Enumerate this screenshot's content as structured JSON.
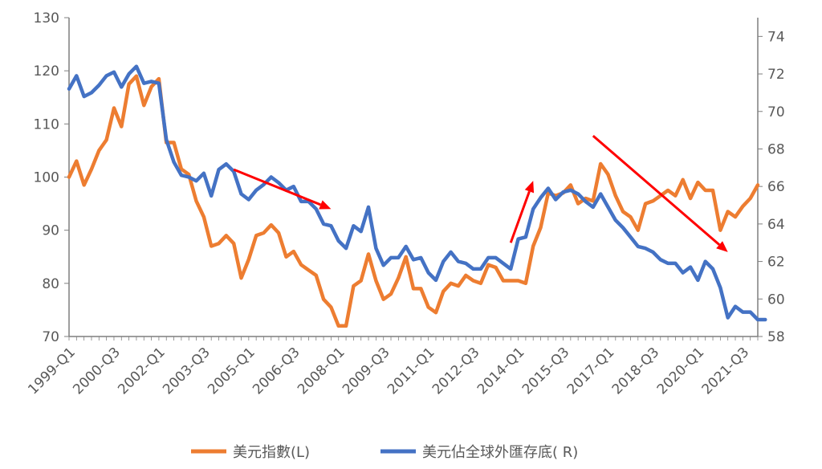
{
  "chart_data": {
    "type": "line",
    "title": "",
    "xlabel": "",
    "ylabel_left": "",
    "ylabel_right": "",
    "ylim_left": [
      70,
      130
    ],
    "ylim_right": [
      58,
      75
    ],
    "yticks_left": [
      "70",
      "80",
      "90",
      "100",
      "110",
      "120",
      "130"
    ],
    "yticks_right": [
      "58",
      "60",
      "62",
      "64",
      "66",
      "68",
      "70",
      "72",
      "74"
    ],
    "xtick_labels": [
      "1999-Q1",
      "2000-Q3",
      "2002-Q1",
      "2003-Q3",
      "2005-Q1",
      "2006-Q3",
      "2008-Q1",
      "2009-Q3",
      "2011-Q1",
      "2012-Q3",
      "2014-Q1",
      "2015-Q3",
      "2017-Q1",
      "2018-Q3",
      "2020-Q1",
      "2021-Q3"
    ],
    "x_range": [
      "1999-Q1",
      "2022-Q1"
    ],
    "grid": false,
    "legend_position": "bottom",
    "series": [
      {
        "name": "美元指數(L)",
        "axis": "left",
        "color": "#ED7D31",
        "values": [
          100,
          103,
          98.5,
          101.5,
          105,
          107,
          113,
          109.5,
          117.5,
          119,
          113.5,
          117,
          118.5,
          106.5,
          106.5,
          101.5,
          100.5,
          95.5,
          92.5,
          87,
          87.5,
          89,
          87.5,
          81,
          84.5,
          89,
          89.5,
          91,
          89.5,
          85,
          86,
          83.5,
          82.5,
          81.5,
          77,
          75.5,
          72,
          72,
          79.5,
          80.5,
          85.5,
          80.5,
          77,
          78,
          81,
          85,
          79,
          79,
          75.5,
          74.5,
          78.5,
          80,
          79.5,
          81.5,
          80.5,
          80,
          83.5,
          83,
          80.5,
          80.5,
          80.5,
          80,
          87,
          90.5,
          97,
          96.5,
          97,
          98.5,
          95,
          96,
          95.5,
          102.5,
          100.5,
          96.5,
          93.5,
          92.5,
          90,
          95,
          95.5,
          96.5,
          97.5,
          96.5,
          99.5,
          96,
          99,
          97.5,
          97.5,
          90,
          93.5,
          92.5,
          94.5,
          96,
          98.5
        ]
      },
      {
        "name": "美元佔全球外匯存底( R)",
        "axis": "right",
        "color": "#4472C4",
        "values": [
          71.2,
          71.9,
          70.8,
          71.0,
          71.4,
          71.9,
          72.1,
          71.3,
          72.0,
          72.4,
          71.5,
          71.6,
          71.5,
          68.5,
          67.3,
          66.6,
          66.5,
          66.3,
          66.7,
          65.5,
          66.9,
          67.2,
          66.8,
          65.6,
          65.3,
          65.8,
          66.1,
          66.5,
          66.2,
          65.8,
          66.0,
          65.2,
          65.2,
          64.8,
          64.0,
          63.9,
          63.1,
          62.7,
          63.9,
          63.6,
          64.9,
          62.7,
          61.8,
          62.2,
          62.2,
          62.8,
          62.1,
          62.2,
          61.4,
          61.0,
          62.0,
          62.5,
          62.0,
          61.9,
          61.6,
          61.6,
          62.2,
          62.2,
          61.9,
          61.6,
          63.2,
          63.3,
          64.8,
          65.4,
          65.9,
          65.3,
          65.7,
          65.8,
          65.6,
          65.2,
          64.9,
          65.6,
          64.9,
          64.2,
          63.8,
          63.3,
          62.8,
          62.7,
          62.5,
          62.1,
          61.9,
          61.9,
          61.4,
          61.7,
          61.0,
          62.0,
          61.6,
          60.6,
          59.0,
          59.6,
          59.3,
          59.3,
          58.9,
          58.9
        ]
      }
    ],
    "annotations": [
      {
        "type": "arrow",
        "color": "#FF0000",
        "direction": "down-right",
        "x_from": "2004-Q3",
        "x_to": "2007-Q4",
        "y_from": 66.9,
        "y_to": 64.8
      },
      {
        "type": "arrow",
        "color": "#FF0000",
        "direction": "up-right",
        "x_from": "2013-Q4",
        "x_to": "2014-Q3",
        "y_from": 63.0,
        "y_to": 66.3
      },
      {
        "type": "arrow",
        "color": "#FF0000",
        "direction": "down-right",
        "x_from": "2016-Q3",
        "x_to": "2021-Q1",
        "y_from": 68.7,
        "y_to": 62.5
      }
    ]
  }
}
